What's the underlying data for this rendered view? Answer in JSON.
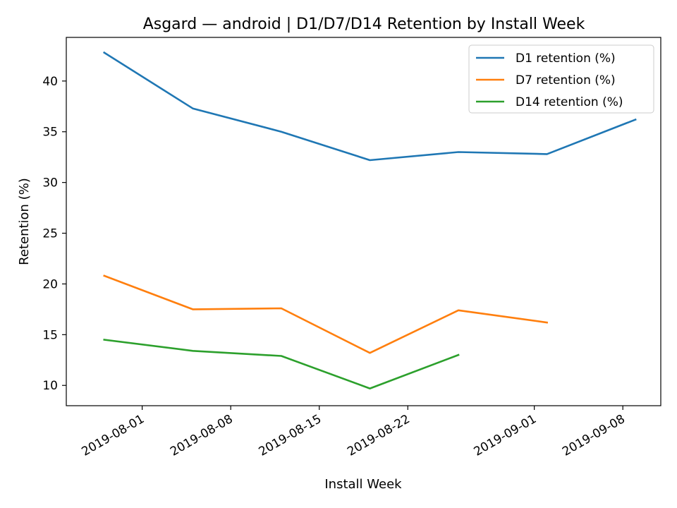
{
  "chart_data": {
    "type": "line",
    "title": "Asgard — android | D1/D7/D14 Retention by Install Week",
    "xlabel": "Install Week",
    "ylabel": "Retention (%)",
    "x": [
      "2019-07-29",
      "2019-08-05",
      "2019-08-12",
      "2019-08-19",
      "2019-08-26",
      "2019-09-02",
      "2019-09-09"
    ],
    "xlim": [
      "2019-07-26",
      "2019-09-11"
    ],
    "ylim": [
      8.0,
      44.3
    ],
    "xticks": [
      "2019-08-01",
      "2019-08-08",
      "2019-08-15",
      "2019-08-22",
      "2019-09-01",
      "2019-09-08"
    ],
    "yticks": [
      10,
      15,
      20,
      25,
      30,
      35,
      40
    ],
    "grid": false,
    "legend_position": "upper right",
    "series": [
      {
        "name": "D1 retention (%)",
        "color": "#1f77b4",
        "values": [
          42.8,
          37.3,
          35.0,
          32.2,
          33.0,
          32.8,
          36.2
        ]
      },
      {
        "name": "D7 retention (%)",
        "color": "#ff7f0e",
        "values": [
          20.8,
          17.5,
          17.6,
          13.2,
          17.4,
          16.2,
          null
        ]
      },
      {
        "name": "D14 retention (%)",
        "color": "#2ca02c",
        "values": [
          14.5,
          13.4,
          12.9,
          9.7,
          13.0,
          null,
          null
        ]
      }
    ]
  }
}
